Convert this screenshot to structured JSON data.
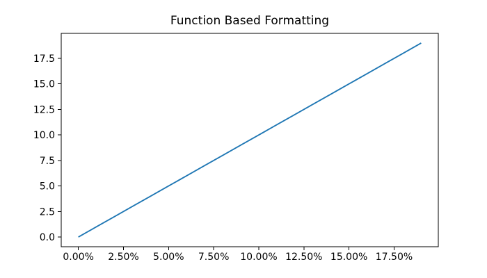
{
  "chart_data": {
    "type": "line",
    "title": "Function Based Formatting",
    "x": [
      0,
      1,
      2,
      3,
      4,
      5,
      6,
      7,
      8,
      9,
      10,
      11,
      12,
      13,
      14,
      15,
      16,
      17,
      18,
      19
    ],
    "series": [
      {
        "values": [
          0,
          1,
          2,
          3,
          4,
          5,
          6,
          7,
          8,
          9,
          10,
          11,
          12,
          13,
          14,
          15,
          16,
          17,
          18,
          19
        ],
        "color": "#1f77b4"
      }
    ],
    "xlabel": "",
    "ylabel": "",
    "xlim": [
      -0.95,
      19.95
    ],
    "ylim": [
      -0.95,
      19.95
    ],
    "xticks": {
      "values": [
        0,
        2.5,
        5,
        7.5,
        10,
        12.5,
        15,
        17.5
      ],
      "labels": [
        "0.00%",
        "2.50%",
        "5.00%",
        "7.50%",
        "10.00%",
        "12.50%",
        "15.00%",
        "17.50%"
      ]
    },
    "yticks": {
      "values": [
        0,
        2.5,
        5,
        7.5,
        10,
        12.5,
        15,
        17.5
      ],
      "labels": [
        "0.0",
        "2.5",
        "5.0",
        "7.5",
        "10.0",
        "12.5",
        "15.0",
        "17.5"
      ]
    },
    "grid": false,
    "legend": null,
    "colors": {
      "line": "#1f77b4",
      "axis": "#000000",
      "text": "#000000",
      "background": "#ffffff"
    }
  }
}
